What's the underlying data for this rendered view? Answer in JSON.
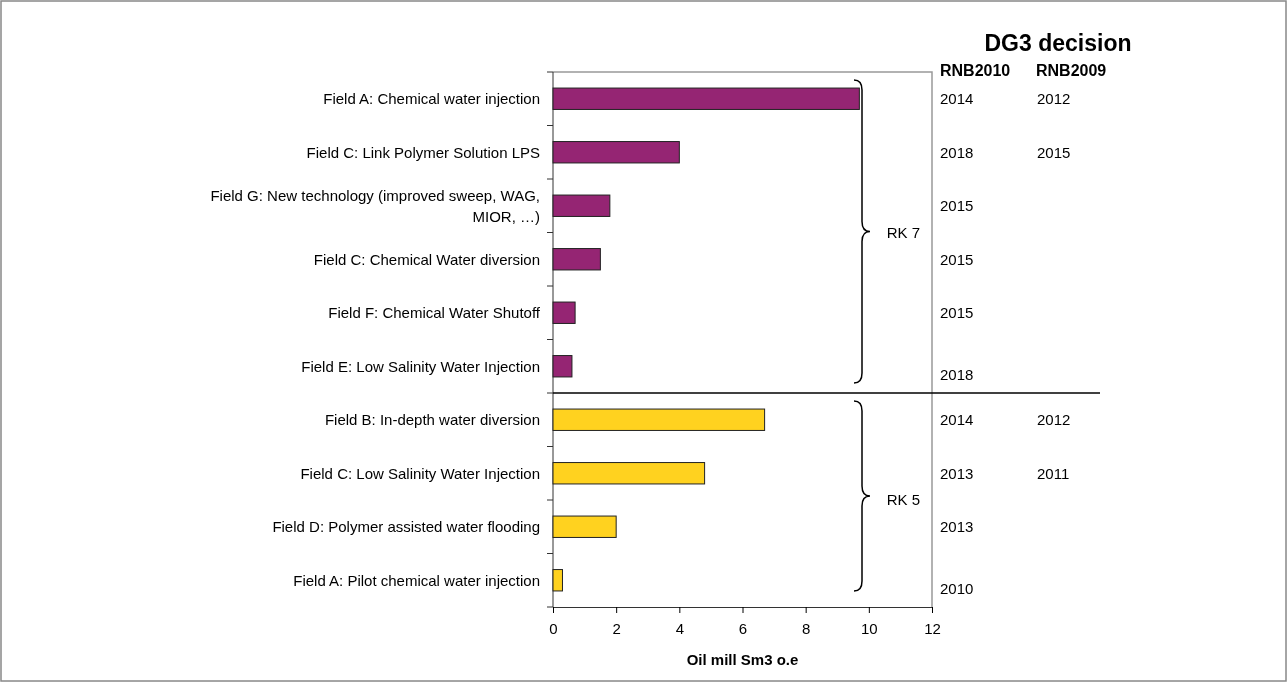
{
  "chart_data": {
    "type": "bar",
    "orientation": "horizontal",
    "categories": [
      "Field A: Chemical water injection",
      "Field C: Link Polymer Solution LPS",
      "Field G: New technology (improved sweep, WAG, MIOR,  …)",
      "Field C: Chemical Water diversion",
      "Field F: Chemical Water Shutoff",
      "Field E: Low Salinity Water Injection",
      "Field B: In-depth water diversion",
      "Field C: Low Salinity Water Injection",
      "Field D: Polymer assisted water flooding",
      "Field A: Pilot chemical water injection"
    ],
    "values": [
      9.7,
      4.0,
      1.8,
      1.5,
      0.7,
      0.6,
      6.7,
      4.8,
      2.0,
      0.3
    ],
    "colors": [
      "#952573",
      "#952573",
      "#952573",
      "#952573",
      "#952573",
      "#952573",
      "#ffd21f",
      "#ffd21f",
      "#ffd21f",
      "#ffd21f"
    ],
    "xlim": [
      0,
      12
    ],
    "xticks": [
      0,
      2,
      4,
      6,
      8,
      10,
      12
    ],
    "xlabel": "Oil mill Sm3 o.e",
    "annotations": [
      "DG3 decision",
      "RNB2010",
      "RNB2009",
      "RK 7",
      "RK 5",
      "2014",
      "2018",
      "2015",
      "2015",
      "2015",
      "2018",
      "2014",
      "2013",
      "2013",
      "2010",
      "2012",
      "2015",
      "2012",
      "2011"
    ]
  }
}
